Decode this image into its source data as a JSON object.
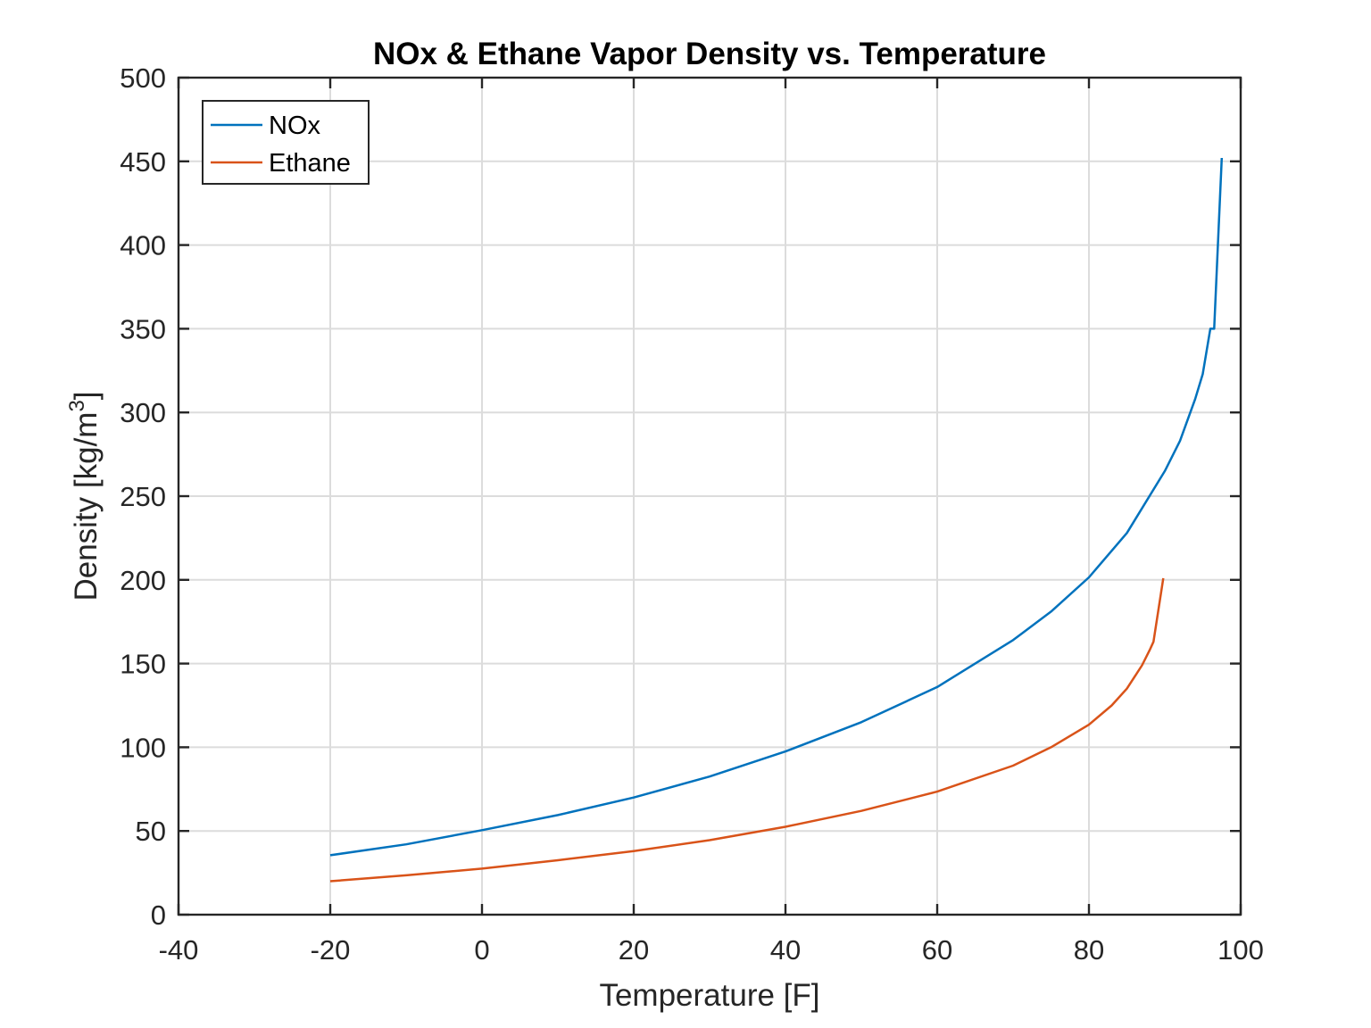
{
  "chart_data": {
    "type": "line",
    "title": "NOx & Ethane Vapor Density vs. Temperature",
    "xlabel": "Temperature [F]",
    "ylabel_main": "Density [kg/m",
    "ylabel_sup": "3",
    "ylabel_end": "]",
    "xlim": [
      -40,
      100
    ],
    "ylim": [
      0,
      500
    ],
    "xticks": [
      -40,
      -20,
      0,
      20,
      40,
      60,
      80,
      100
    ],
    "yticks": [
      0,
      50,
      100,
      150,
      200,
      250,
      300,
      350,
      400,
      450,
      500
    ],
    "grid": true,
    "legend_position": "top-left",
    "series": [
      {
        "name": "NOx",
        "color": "#0072BD",
        "x": [
          -20,
          -10,
          0,
          10,
          20,
          30,
          40,
          50,
          60,
          70,
          75,
          80,
          85,
          90,
          92,
          94,
          95,
          96,
          96.5,
          97.5
        ],
        "y": [
          35.5,
          42,
          50.5,
          59.5,
          70,
          82.5,
          97.5,
          115,
          136,
          164,
          181,
          201.5,
          228,
          265,
          283,
          308,
          323,
          350,
          350,
          452
        ]
      },
      {
        "name": "Ethane",
        "color": "#D95319",
        "x": [
          -20,
          -10,
          0,
          10,
          20,
          30,
          40,
          50,
          60,
          70,
          75,
          80,
          83,
          85,
          87,
          88,
          88.5,
          89.8
        ],
        "y": [
          20,
          23.5,
          27.5,
          32.5,
          38,
          44.5,
          52.5,
          62,
          73.5,
          89,
          100,
          113.5,
          125,
          135,
          149,
          158,
          163,
          201
        ]
      }
    ]
  }
}
